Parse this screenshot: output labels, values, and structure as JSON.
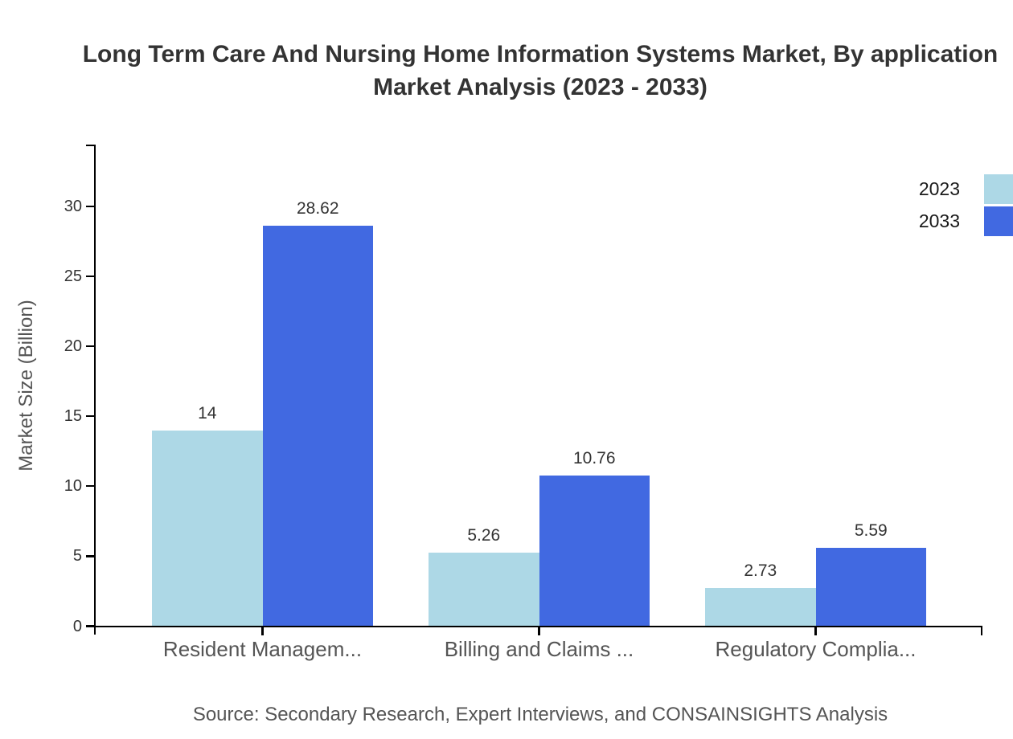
{
  "title": {
    "line1": "Long Term Care And Nursing Home Information Systems Market, By application",
    "line2": "Market Analysis (2023 - 2033)"
  },
  "legend": [
    {
      "label": "2023",
      "color": "#ADD8E6"
    },
    {
      "label": "2033",
      "color": "#4169E1"
    }
  ],
  "source": "Source: Secondary Research, Expert Interviews, and CONSAINSIGHTS Analysis",
  "colors": {
    "series_2023": "#ADD8E6",
    "series_2033": "#4169E1",
    "axis": "#000000",
    "title_text": "#333333",
    "muted_text": "#555555"
  },
  "chart_data": {
    "type": "bar",
    "title": "Long Term Care And Nursing Home Information Systems Market, By application - Market Analysis (2023 - 2033)",
    "categories": [
      "Resident Managem...",
      "Billing and Claims ...",
      "Regulatory Complia..."
    ],
    "series": [
      {
        "name": "2023",
        "color": "#ADD8E6",
        "values": [
          14,
          5.26,
          2.73
        ],
        "labels": [
          "14",
          "5.26",
          "2.73"
        ]
      },
      {
        "name": "2033",
        "color": "#4169E1",
        "values": [
          28.62,
          10.76,
          5.59
        ],
        "labels": [
          "28.62",
          "10.76",
          "5.59"
        ]
      }
    ],
    "xlabel": "",
    "ylabel": "Market Size (Billion)",
    "yticks": [
      0,
      5,
      10,
      15,
      20,
      25,
      30
    ],
    "ylim": [
      0,
      34.4
    ],
    "grid": false,
    "legend_position": "top-right"
  }
}
